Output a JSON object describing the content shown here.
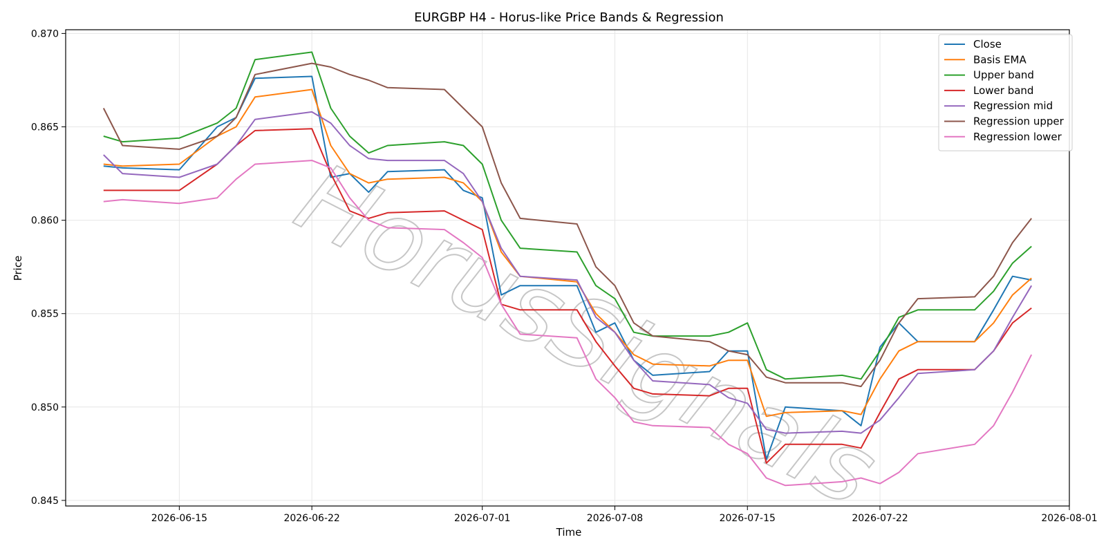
{
  "chart_data": {
    "type": "line",
    "title": "EURGBP H4 - Horus-like Price Bands & Regression",
    "xlabel": "Time",
    "ylabel": "Price",
    "watermark": "HorusSignals",
    "x_range": [
      "2026-06-09",
      "2026-08-01"
    ],
    "ylim": [
      0.8447,
      0.8702
    ],
    "grid": true,
    "legend_position": "top-right",
    "x_ticks": [
      "2026-06-15",
      "2026-06-22",
      "2026-07-01",
      "2026-07-08",
      "2026-07-15",
      "2026-07-22",
      "2026-08-01"
    ],
    "y_ticks": [
      "0.845",
      "0.850",
      "0.855",
      "0.860",
      "0.865",
      "0.870"
    ],
    "x": [
      "2026-06-11",
      "2026-06-12",
      "2026-06-15",
      "2026-06-17",
      "2026-06-18",
      "2026-06-19",
      "2026-06-22",
      "2026-06-23",
      "2026-06-24",
      "2026-06-25",
      "2026-06-26",
      "2026-06-29",
      "2026-06-30",
      "2026-07-01",
      "2026-07-02",
      "2026-07-03",
      "2026-07-06",
      "2026-07-07",
      "2026-07-08",
      "2026-07-09",
      "2026-07-10",
      "2026-07-13",
      "2026-07-14",
      "2026-07-15",
      "2026-07-16",
      "2026-07-17",
      "2026-07-20",
      "2026-07-21",
      "2026-07-22",
      "2026-07-23",
      "2026-07-24",
      "2026-07-27",
      "2026-07-28",
      "2026-07-29",
      "2026-07-30"
    ],
    "series": [
      {
        "name": "Close",
        "color": "#1f77b4",
        "values": [
          0.8629,
          0.8628,
          0.8627,
          0.865,
          0.8655,
          0.8676,
          0.8677,
          0.8623,
          0.8625,
          0.8615,
          0.8626,
          0.8627,
          0.8616,
          0.8612,
          0.856,
          0.8565,
          0.8565,
          0.854,
          0.8545,
          0.8525,
          0.8517,
          0.8519,
          0.853,
          0.853,
          0.8472,
          0.85,
          0.8498,
          0.849,
          0.8532,
          0.8545,
          0.8535,
          0.8535,
          0.8552,
          0.857,
          0.8568
        ]
      },
      {
        "name": "Basis EMA",
        "color": "#ff7f0e",
        "values": [
          0.863,
          0.8629,
          0.863,
          0.8645,
          0.865,
          0.8666,
          0.867,
          0.864,
          0.8625,
          0.862,
          0.8622,
          0.8623,
          0.862,
          0.861,
          0.8583,
          0.857,
          0.8567,
          0.855,
          0.854,
          0.8528,
          0.8523,
          0.8522,
          0.8525,
          0.8525,
          0.8495,
          0.8497,
          0.8498,
          0.8496,
          0.8515,
          0.853,
          0.8535,
          0.8535,
          0.8545,
          0.856,
          0.8569
        ]
      },
      {
        "name": "Upper band",
        "color": "#2ca02c",
        "values": [
          0.8645,
          0.8642,
          0.8644,
          0.8652,
          0.866,
          0.8686,
          0.869,
          0.866,
          0.8645,
          0.8636,
          0.864,
          0.8642,
          0.864,
          0.863,
          0.86,
          0.8585,
          0.8583,
          0.8565,
          0.8558,
          0.854,
          0.8538,
          0.8538,
          0.854,
          0.8545,
          0.852,
          0.8515,
          0.8517,
          0.8515,
          0.853,
          0.8548,
          0.8552,
          0.8552,
          0.8562,
          0.8577,
          0.8586
        ]
      },
      {
        "name": "Lower band",
        "color": "#d62728",
        "values": [
          0.8616,
          0.8616,
          0.8616,
          0.863,
          0.864,
          0.8648,
          0.8649,
          0.8625,
          0.8605,
          0.8601,
          0.8604,
          0.8605,
          0.86,
          0.8595,
          0.8555,
          0.8552,
          0.8552,
          0.8535,
          0.8522,
          0.851,
          0.8507,
          0.8506,
          0.851,
          0.851,
          0.847,
          0.848,
          0.848,
          0.8478,
          0.8497,
          0.8515,
          0.852,
          0.852,
          0.853,
          0.8545,
          0.8553
        ]
      },
      {
        "name": "Regression mid",
        "color": "#9467bd",
        "values": [
          0.8635,
          0.8625,
          0.8623,
          0.863,
          0.864,
          0.8654,
          0.8658,
          0.8652,
          0.864,
          0.8633,
          0.8632,
          0.8632,
          0.8625,
          0.861,
          0.8585,
          0.857,
          0.8568,
          0.8548,
          0.854,
          0.8525,
          0.8514,
          0.8512,
          0.8505,
          0.8502,
          0.8488,
          0.8486,
          0.8487,
          0.8486,
          0.8493,
          0.8505,
          0.8518,
          0.852,
          0.853,
          0.8548,
          0.8565
        ]
      },
      {
        "name": "Regression upper",
        "color": "#8c564b",
        "values": [
          0.866,
          0.864,
          0.8638,
          0.8645,
          0.8655,
          0.8678,
          0.8684,
          0.8682,
          0.8678,
          0.8675,
          0.8671,
          0.867,
          0.866,
          0.865,
          0.862,
          0.8601,
          0.8598,
          0.8575,
          0.8565,
          0.8545,
          0.8538,
          0.8535,
          0.853,
          0.8528,
          0.8516,
          0.8513,
          0.8513,
          0.8511,
          0.8525,
          0.8545,
          0.8558,
          0.8559,
          0.857,
          0.8588,
          0.8601
        ]
      },
      {
        "name": "Regression lower",
        "color": "#e377c2",
        "values": [
          0.861,
          0.8611,
          0.8609,
          0.8612,
          0.8622,
          0.863,
          0.8632,
          0.8628,
          0.8612,
          0.86,
          0.8596,
          0.8595,
          0.8588,
          0.858,
          0.8555,
          0.8539,
          0.8537,
          0.8515,
          0.8505,
          0.8492,
          0.849,
          0.8489,
          0.848,
          0.8475,
          0.8462,
          0.8458,
          0.846,
          0.8462,
          0.8459,
          0.8465,
          0.8475,
          0.848,
          0.849,
          0.8508,
          0.8528
        ]
      }
    ]
  }
}
